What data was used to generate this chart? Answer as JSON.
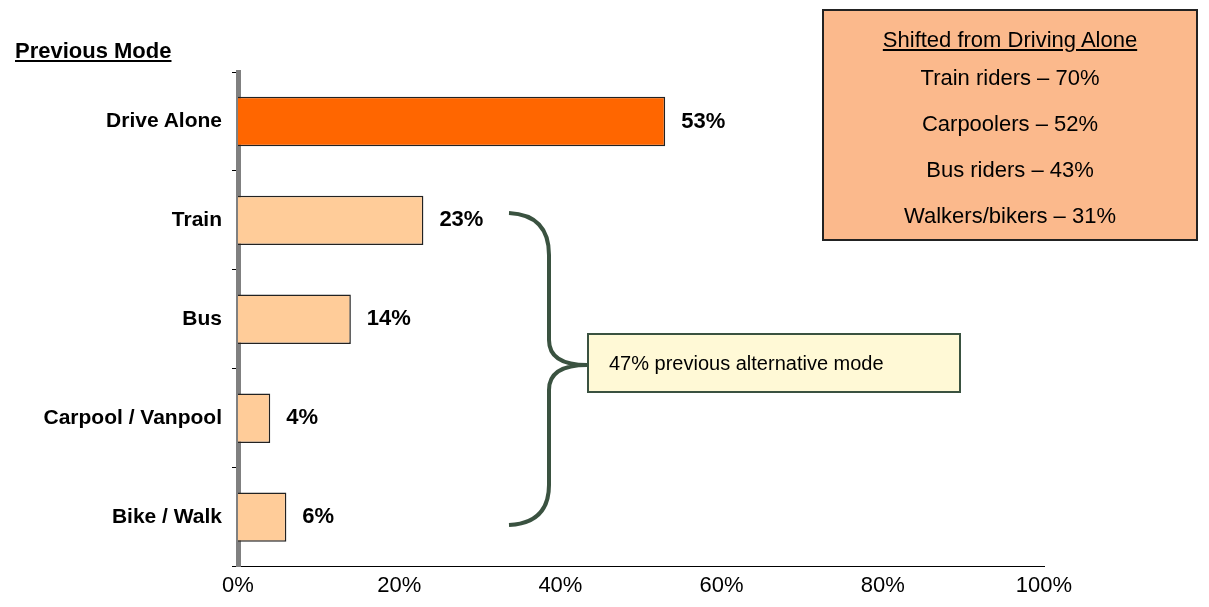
{
  "chart_data": {
    "type": "bar",
    "orientation": "horizontal",
    "ylabel": "Previous Mode",
    "categories": [
      "Drive Alone",
      "Train",
      "Bus",
      "Carpool / Vanpool",
      "Bike / Walk"
    ],
    "values": [
      53,
      23,
      14,
      4,
      6
    ],
    "value_labels": [
      "53%",
      "23%",
      "14%",
      "4%",
      "6%"
    ],
    "colors": [
      "#ff6600",
      "#ffcc99",
      "#ffcc99",
      "#ffcc99",
      "#ffcc99"
    ],
    "xlim": [
      0,
      100
    ],
    "xticks": [
      {
        "value": 0,
        "label": "0%"
      },
      {
        "value": 20,
        "label": "20%"
      },
      {
        "value": 40,
        "label": "40%"
      },
      {
        "value": 60,
        "label": "60%"
      },
      {
        "value": 80,
        "label": "80%"
      },
      {
        "value": 100,
        "label": "100%"
      }
    ],
    "grid": false,
    "legend": false,
    "annotations": [
      "Shifted from Driving Alone",
      "Train riders – 70%",
      "Carpoolers – 52%",
      "Bus riders – 43%",
      "Walkers/bikers – 31%",
      "47% previous alternative mode"
    ]
  }
}
